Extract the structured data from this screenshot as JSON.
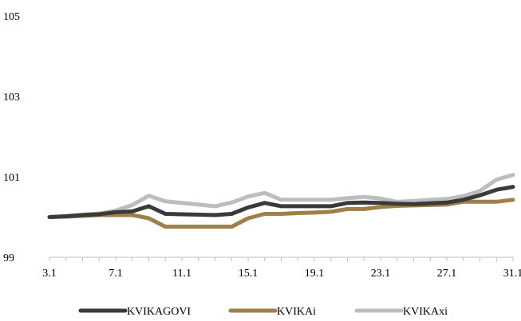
{
  "chart_data": {
    "type": "line",
    "title": "",
    "xlabel": "",
    "ylabel": "",
    "ylim": [
      99,
      105
    ],
    "yticks": [
      "105",
      "103",
      "101",
      "99"
    ],
    "ytick_values": [
      105,
      103,
      101,
      99
    ],
    "grid": false,
    "legend_position": "bottom",
    "x_tick_labels": [
      "3.1",
      "7.1",
      "11.1",
      "15.1",
      "19.1",
      "23.1",
      "27.1",
      "31.1"
    ],
    "x": [
      "3.1",
      "4.1",
      "5.1",
      "6.1",
      "7.1",
      "8.1",
      "9.1",
      "10.1",
      "11.1",
      "12.1",
      "13.1",
      "14.1",
      "15.1",
      "16.1",
      "17.1",
      "18.1",
      "19.1",
      "20.1",
      "21.1",
      "22.1",
      "23.1",
      "24.1",
      "25.1",
      "26.1",
      "27.1",
      "28.1",
      "29.1",
      "30.1",
      "31.1"
    ],
    "series": [
      {
        "name": "KVIKAGOVI",
        "color": "#3a3a3a",
        "values": [
          100.0,
          100.02,
          100.05,
          100.07,
          100.12,
          100.14,
          100.27,
          100.08,
          100.07,
          100.06,
          100.05,
          100.08,
          100.24,
          100.35,
          100.27,
          100.27,
          100.27,
          100.27,
          100.35,
          100.36,
          100.35,
          100.33,
          100.32,
          100.34,
          100.36,
          100.43,
          100.54,
          100.68,
          100.75
        ]
      },
      {
        "name": "KVIKAi",
        "color": "#a07f48",
        "values": [
          100.0,
          100.01,
          100.03,
          100.05,
          100.05,
          100.05,
          99.97,
          99.76,
          99.76,
          99.76,
          99.76,
          99.76,
          99.97,
          100.08,
          100.08,
          100.1,
          100.11,
          100.13,
          100.2,
          100.2,
          100.25,
          100.28,
          100.29,
          100.3,
          100.31,
          100.38,
          100.38,
          100.38,
          100.43
        ]
      },
      {
        "name": "KVIKAxi",
        "color": "#bdbdbd",
        "values": [
          100.0,
          100.02,
          100.06,
          100.09,
          100.16,
          100.3,
          100.53,
          100.39,
          100.35,
          100.31,
          100.27,
          100.36,
          100.51,
          100.6,
          100.43,
          100.43,
          100.43,
          100.43,
          100.47,
          100.5,
          100.46,
          100.38,
          100.4,
          100.43,
          100.45,
          100.52,
          100.65,
          100.93,
          101.05
        ]
      }
    ]
  }
}
